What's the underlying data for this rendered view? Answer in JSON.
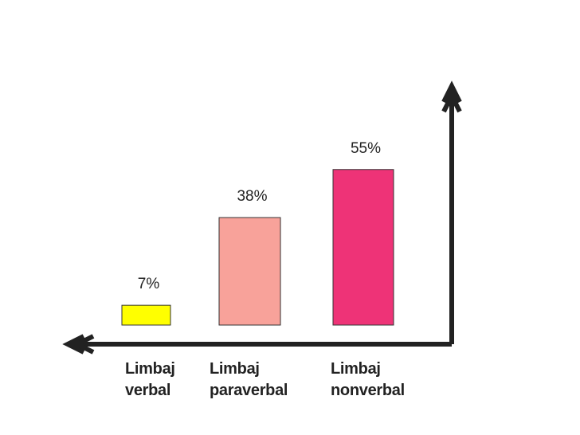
{
  "chart_data": {
    "type": "bar",
    "categories": [
      "Limbaj verbal",
      "Limbaj paraverbal",
      "Limbaj nonverbal"
    ],
    "values": [
      7,
      38,
      55
    ],
    "value_labels": [
      "7%",
      "38%",
      "55%"
    ],
    "colors": [
      "#ffff00",
      "#f8a29a",
      "#ee3377"
    ],
    "ylim": [
      0,
      60
    ]
  }
}
